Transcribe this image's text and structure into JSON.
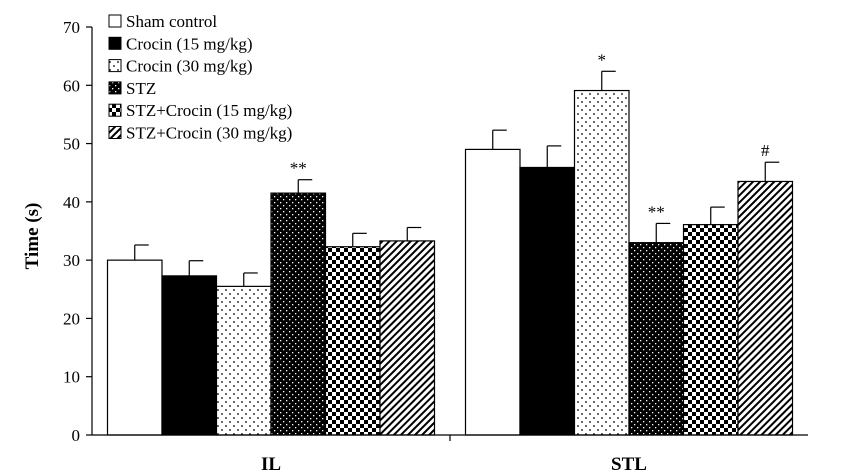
{
  "chart_data": {
    "type": "bar",
    "ylabel": "Time (s)",
    "ylim": [
      0,
      70
    ],
    "yticks": [
      "0",
      "10",
      "20",
      "30",
      "40",
      "50",
      "60",
      "70"
    ],
    "categories": [
      "IL",
      "STL"
    ],
    "legend_position": "top-left",
    "series": [
      {
        "name": "Sham control",
        "values": [
          30,
          49
        ],
        "errors": [
          2.6,
          3.3
        ],
        "pattern": "white",
        "annotations": [
          "",
          ""
        ]
      },
      {
        "name": "Crocin (15 mg/kg)",
        "values": [
          27.3,
          45.9
        ],
        "errors": [
          2.6,
          3.7
        ],
        "pattern": "black",
        "annotations": [
          "",
          ""
        ]
      },
      {
        "name": "Crocin (30 mg/kg)",
        "values": [
          25.5,
          59.1
        ],
        "errors": [
          2.3,
          3.3
        ],
        "pattern": "sparse-dots",
        "annotations": [
          "",
          "*"
        ]
      },
      {
        "name": "STZ",
        "values": [
          41.5,
          33
        ],
        "errors": [
          2.3,
          3.3
        ],
        "pattern": "dense-dots",
        "annotations": [
          "**",
          "**"
        ]
      },
      {
        "name": "STZ+Crocin (15 mg/kg)",
        "values": [
          32.3,
          36.1
        ],
        "errors": [
          2.3,
          3
        ],
        "pattern": "checker",
        "annotations": [
          "",
          ""
        ]
      },
      {
        "name": "STZ+Crocin (30 mg/kg)",
        "values": [
          33.3,
          43.5
        ],
        "errors": [
          2.3,
          3.3
        ],
        "pattern": "diagonal",
        "annotations": [
          "",
          "#"
        ]
      }
    ]
  }
}
